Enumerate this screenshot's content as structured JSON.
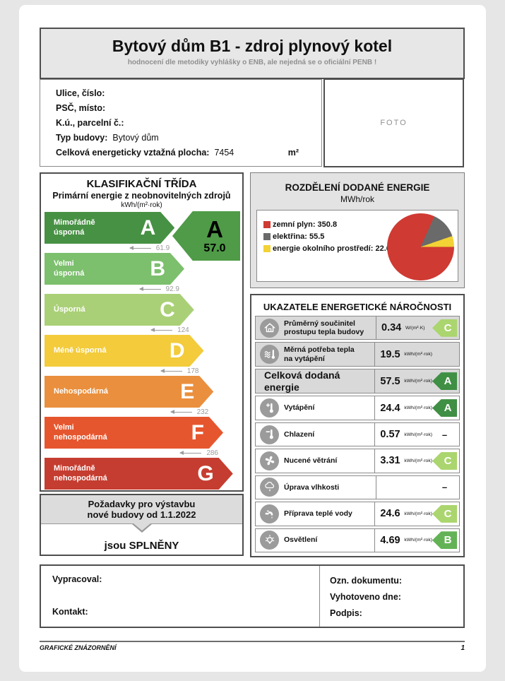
{
  "header": {
    "title": "Bytový dům B1 - zdroj plynový kotel",
    "subtitle": "hodnocení dle metodiky vyhlášky o ENB, ale nejedná se o oficiální PENB !"
  },
  "building": {
    "fields": [
      {
        "label": "Ulice, číslo:",
        "value": "",
        "unit": ""
      },
      {
        "label": "PSČ, místo:",
        "value": "",
        "unit": ""
      },
      {
        "label": "K.ú., parcelní č.:",
        "value": "",
        "unit": ""
      },
      {
        "label": "Typ budovy:",
        "value": "Bytový dům",
        "unit": ""
      },
      {
        "label": "Celková energeticky vztažná plocha:",
        "value": "7454",
        "unit": "m²"
      }
    ],
    "photo_placeholder": "FOTO"
  },
  "classification": {
    "title": "KLASIFIKAČNÍ TŘÍDA",
    "subtitle": "Primární energie z neobnovitelných zdrojů",
    "unit": "kWh/(m²·rok)",
    "bands": [
      {
        "letter": "A",
        "label": "Mimořádně\núsporná",
        "color": "#479144",
        "width_pct": 67,
        "threshold": "61.9"
      },
      {
        "letter": "B",
        "label": "Velmi\núsporná",
        "color": "#7cbf6d",
        "width_pct": 72,
        "threshold": "92.9"
      },
      {
        "letter": "C",
        "label": "Úsporná",
        "color": "#aad077",
        "width_pct": 77,
        "threshold": "124"
      },
      {
        "letter": "D",
        "label": "Méně úsporná",
        "color": "#f3cb3b",
        "width_pct": 82,
        "threshold": "178"
      },
      {
        "letter": "E",
        "label": "Nehospodárná",
        "color": "#ea8f3d",
        "width_pct": 87,
        "threshold": "232"
      },
      {
        "letter": "F",
        "label": "Velmi\nnehospodárná",
        "color": "#e6562e",
        "width_pct": 92,
        "threshold": "286"
      },
      {
        "letter": "G",
        "label": "Mimořádně\nnehospodárná",
        "color": "#c53d30",
        "width_pct": 97,
        "threshold": ""
      }
    ],
    "rating": {
      "letter": "A",
      "value": "57.0",
      "color": "#4f9b47"
    }
  },
  "requirements": {
    "line1": "Požadavky pro výstavbu",
    "line2": "nové budovy od 1.1.2022",
    "result": "jsou SPLNĚNY"
  },
  "chart_data": {
    "type": "pie",
    "title": "ROZDĚLENÍ DODANÉ ENERGIE",
    "unit": "MWh/rok",
    "legend_position": "left",
    "slices": [
      {
        "label": "zemní plyn",
        "value": 350.8,
        "color": "#cf3a32"
      },
      {
        "label": "elektřina",
        "value": 55.5,
        "color": "#6a6a6a"
      },
      {
        "label": "energie okolního prostředí",
        "value": 22.6,
        "color": "#f2d235"
      }
    ]
  },
  "indicators": {
    "title": "UKAZATELE ENERGETICKÉ NÁROČNOSTI",
    "class_colors": {
      "A": "#3f8f44",
      "B": "#63b356",
      "C": "#abd56e"
    },
    "rows": [
      {
        "icon": "house-icon",
        "label": "Průměrný součinitel\nprostupu tepla budovy",
        "value": "0.34",
        "unit": "W/(m²·K)",
        "class": "C",
        "shaded": true,
        "emphasis": false
      },
      {
        "icon": "heating-demand-icon",
        "label": "Měrná potřeba tepla\nna vytápění",
        "value": "19.5",
        "unit": "kWh/(m²·rok)",
        "class": "",
        "shaded": true,
        "emphasis": false
      },
      {
        "icon": "",
        "label": "Celková dodaná energie",
        "value": "57.5",
        "unit": "kWh/(m²·rok)",
        "class": "A",
        "shaded": true,
        "emphasis": true
      },
      {
        "icon": "heating-icon",
        "label": "Vytápění",
        "value": "24.4",
        "unit": "kWh/(m²·rok)",
        "class": "A",
        "shaded": false,
        "emphasis": false
      },
      {
        "icon": "cooling-icon",
        "label": "Chlazení",
        "value": "0.57",
        "unit": "kWh/(m²·rok)",
        "class": "-",
        "shaded": false,
        "emphasis": false
      },
      {
        "icon": "ventilation-icon",
        "label": "Nucené větrání",
        "value": "3.31",
        "unit": "kWh/(m²·rok)",
        "class": "C",
        "shaded": false,
        "emphasis": false
      },
      {
        "icon": "humidity-icon",
        "label": "Úprava vlhkosti",
        "value": "",
        "unit": "",
        "class": "-",
        "shaded": false,
        "emphasis": false
      },
      {
        "icon": "hot-water-icon",
        "label": "Příprava teplé vody",
        "value": "24.6",
        "unit": "kWh/(m²·rok)",
        "class": "C",
        "shaded": false,
        "emphasis": false
      },
      {
        "icon": "lighting-icon",
        "label": "Osvětlení",
        "value": "4.69",
        "unit": "kWh/(m²·rok)",
        "class": "B",
        "shaded": false,
        "emphasis": false
      }
    ]
  },
  "signoff": {
    "left": [
      "Vypracoval:",
      "Kontakt:"
    ],
    "right": [
      "Ozn. dokumentu:",
      "Vyhotoveno dne:",
      "Podpis:"
    ]
  },
  "footer": {
    "left": "GRAFICKÉ ZNÁZORNĚNÍ",
    "page_number": "1"
  }
}
